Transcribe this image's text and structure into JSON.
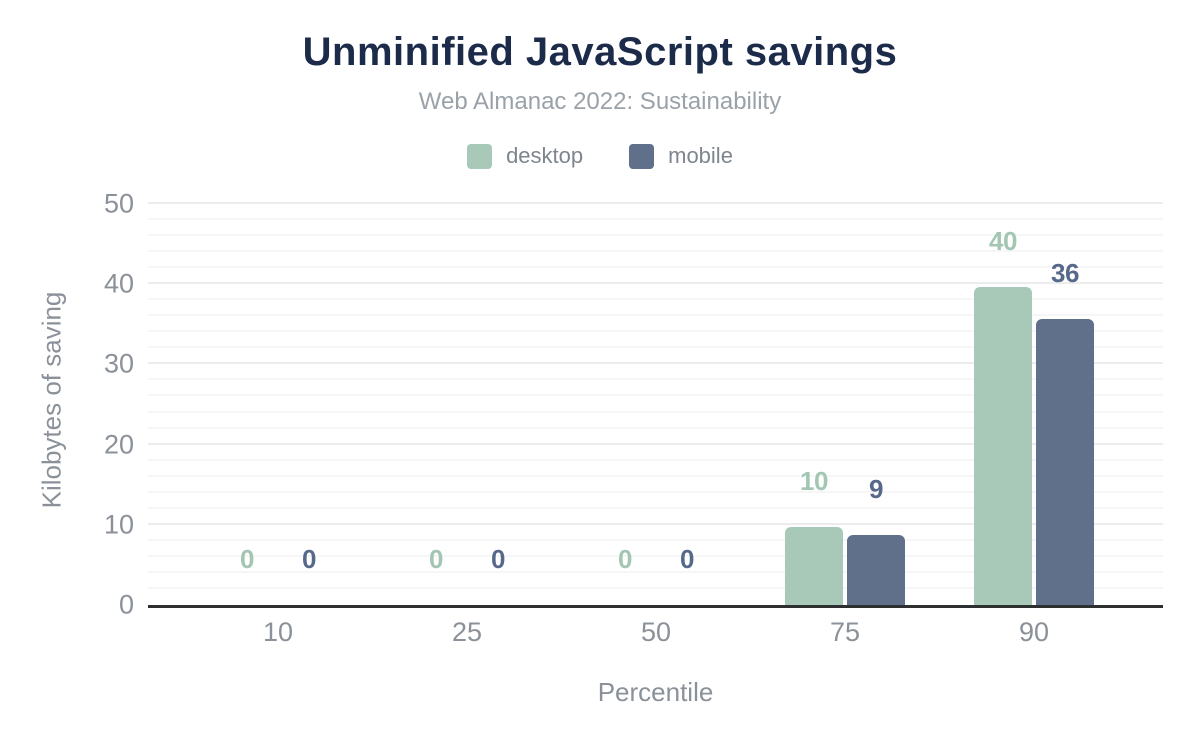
{
  "chart_data": {
    "type": "bar",
    "title": "Unminified JavaScript savings",
    "subtitle": "Web Almanac 2022: Sustainability",
    "xlabel": "Percentile",
    "ylabel": "Kilobytes of saving",
    "categories": [
      "10",
      "25",
      "50",
      "75",
      "90"
    ],
    "series": [
      {
        "name": "desktop",
        "color": "#a8c9b8",
        "label_color": "#a3c6b3",
        "values": [
          0,
          0,
          0,
          9.7,
          39.7
        ],
        "labels": [
          "0",
          "0",
          "0",
          "10",
          "40"
        ]
      },
      {
        "name": "mobile",
        "color": "#60708b",
        "label_color": "#57698b",
        "values": [
          0,
          0,
          0,
          8.7,
          35.7
        ],
        "labels": [
          "0",
          "0",
          "0",
          "9",
          "36"
        ]
      }
    ],
    "ylim": [
      0,
      50
    ],
    "yticks": [
      0,
      10,
      20,
      30,
      40,
      50
    ],
    "minor_grid_step": 2,
    "grid": "horizontal",
    "legend_position": "top",
    "axis_line_color": "#2d2f31",
    "text_gray": "#8b9199",
    "title_color": "#1c2b49"
  }
}
